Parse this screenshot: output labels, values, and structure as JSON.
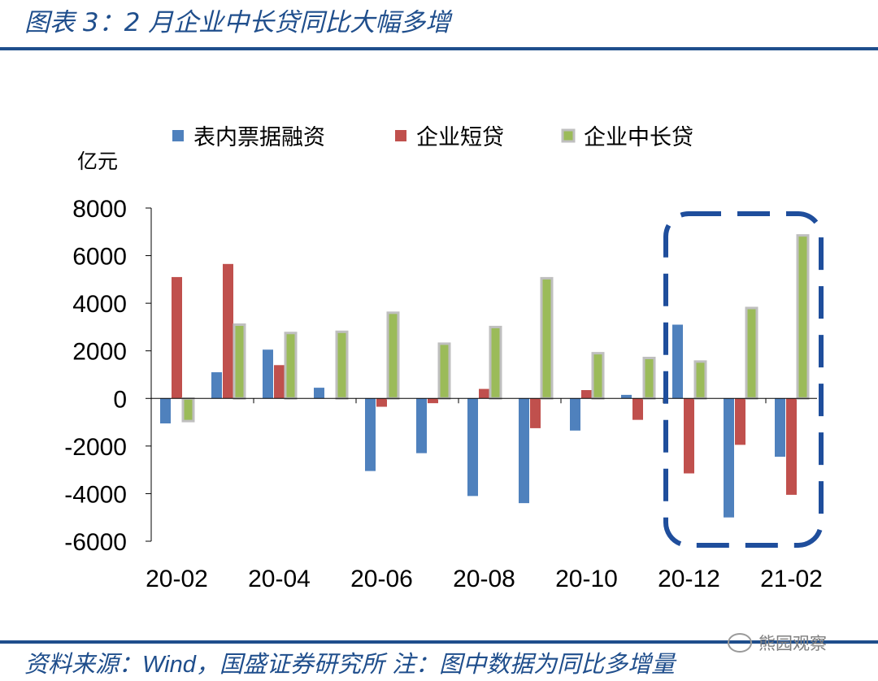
{
  "header": {
    "title": "图表 3：2 月企业中长贷同比大幅多增"
  },
  "footer": {
    "source_prefix": "资料来源：",
    "source_name": "Wind",
    "source_rest": "，国盛证券研究所  注：图中数据为同比多增量",
    "watermark": "熊园观察"
  },
  "colors": {
    "series_1": "#4f81bd",
    "series_2": "#c0504d",
    "series_3": "#9bbb59",
    "series_3_border": "#bfbfbf",
    "highlight_box": "#1f4e9c",
    "brand": "#1f4e8c"
  },
  "chart_data": {
    "type": "bar",
    "title": "图表 3：2 月企业中长贷同比大幅多增",
    "ylabel": "亿元",
    "xlabel": "",
    "ylim": [
      -6000,
      8000
    ],
    "yticks": [
      8000,
      6000,
      4000,
      2000,
      0,
      -2000,
      -4000,
      -6000
    ],
    "ytick_labels": [
      "8000",
      "6000",
      "4000",
      "2000",
      "0",
      "-2000",
      "-4000",
      "-6000"
    ],
    "legend_position": "top",
    "categories": [
      "20-02",
      "20-03",
      "20-04",
      "20-05",
      "20-06",
      "20-07",
      "20-08",
      "20-09",
      "20-10",
      "20-11",
      "20-12",
      "21-01",
      "21-02"
    ],
    "xtick_labels": [
      "20-02",
      "20-04",
      "20-06",
      "20-08",
      "20-10",
      "20-12",
      "21-02"
    ],
    "series": [
      {
        "name": "表内票据融资",
        "values": [
          -1050,
          1100,
          2050,
          450,
          -3050,
          -2300,
          -4100,
          -4400,
          -1350,
          150,
          3100,
          -5000,
          -2450
        ]
      },
      {
        "name": "企业短贷",
        "values": [
          5100,
          5650,
          1400,
          0,
          -350,
          -200,
          400,
          -1250,
          350,
          -900,
          -3150,
          -1950,
          -4050
        ]
      },
      {
        "name": "企业中长贷",
        "values": [
          -950,
          3100,
          2750,
          2800,
          3600,
          2300,
          3000,
          5050,
          1900,
          1700,
          1550,
          3800,
          6850
        ]
      }
    ],
    "annotations": [
      {
        "type": "dashed-box",
        "label": "",
        "categories": [
          "20-12",
          "21-02"
        ]
      }
    ]
  }
}
